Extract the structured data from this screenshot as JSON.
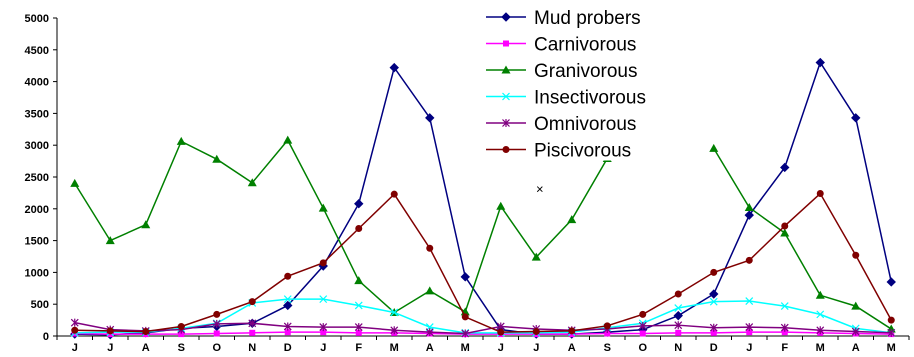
{
  "chart_data": {
    "type": "line",
    "title": "",
    "xlabel": "",
    "ylabel": "",
    "ylim": [
      0,
      5000
    ],
    "yticks": [
      0,
      500,
      1000,
      1500,
      2000,
      2500,
      3000,
      3500,
      4000,
      4500,
      5000
    ],
    "categories": [
      "J",
      "J",
      "A",
      "S",
      "O",
      "N",
      "D",
      "J",
      "F",
      "M",
      "A",
      "M",
      "J",
      "J",
      "A",
      "S",
      "O",
      "N",
      "D",
      "J",
      "F",
      "M",
      "A",
      "M"
    ],
    "grid": false,
    "legend": "top-right",
    "series": [
      {
        "name": "Mud probers",
        "color": "#000080",
        "marker": "diamond",
        "values": [
          30,
          20,
          50,
          120,
          150,
          200,
          480,
          1100,
          2080,
          4220,
          3430,
          930,
          100,
          30,
          30,
          60,
          100,
          320,
          660,
          1900,
          2650,
          4300,
          3430,
          850
        ]
      },
      {
        "name": "Carnivorous",
        "color": "#ff00ff",
        "marker": "square",
        "values": [
          40,
          30,
          30,
          30,
          40,
          50,
          60,
          60,
          50,
          50,
          40,
          30,
          30,
          30,
          30,
          40,
          40,
          50,
          50,
          60,
          60,
          50,
          40,
          30
        ]
      },
      {
        "name": "Granivorous",
        "color": "#008000",
        "marker": "triangle",
        "values": [
          2400,
          1500,
          1750,
          3060,
          2780,
          2410,
          3080,
          2010,
          870,
          370,
          710,
          380,
          2040,
          1240,
          1830,
          2790,
          null,
          null,
          2950,
          2020,
          1620,
          640,
          470,
          110
        ]
      },
      {
        "name": "Insectivorous",
        "color": "#00ffff",
        "marker": "x",
        "values": [
          50,
          60,
          60,
          120,
          200,
          520,
          580,
          580,
          480,
          370,
          140,
          50,
          50,
          50,
          60,
          130,
          200,
          440,
          540,
          550,
          470,
          340,
          120,
          50
        ]
      },
      {
        "name": "Omnivorous",
        "color": "#800080",
        "marker": "star",
        "values": [
          210,
          100,
          80,
          100,
          190,
          200,
          150,
          140,
          140,
          90,
          60,
          40,
          150,
          110,
          90,
          110,
          160,
          170,
          130,
          140,
          130,
          90,
          70,
          50
        ]
      },
      {
        "name": "Piscivorous",
        "color": "#800000",
        "marker": "circle",
        "values": [
          90,
          80,
          70,
          150,
          340,
          540,
          940,
          1150,
          1690,
          2230,
          1380,
          300,
          60,
          70,
          80,
          160,
          340,
          660,
          1000,
          1190,
          1730,
          2240,
          1270,
          250
        ]
      }
    ],
    "annotations": [
      {
        "text": "×",
        "x_index": 13.1,
        "y": 2300
      }
    ]
  }
}
